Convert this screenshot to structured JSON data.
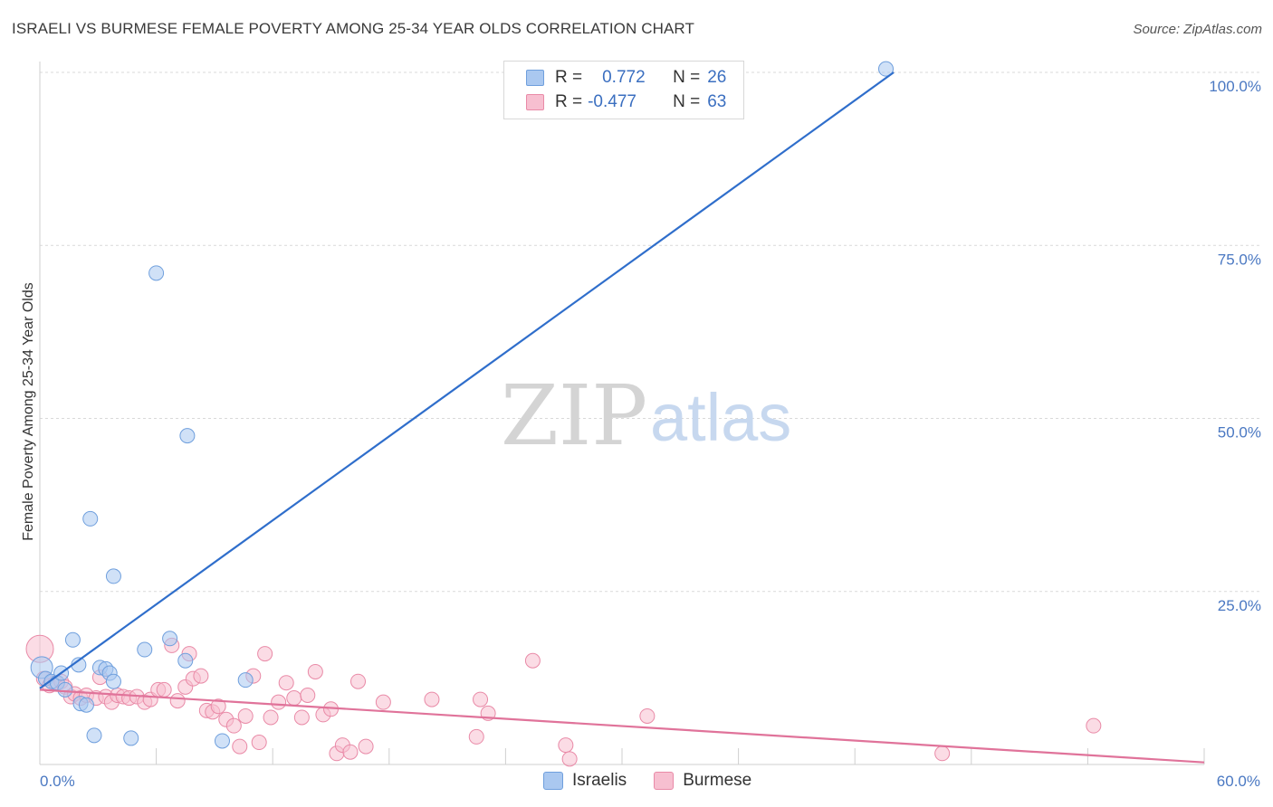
{
  "title": "ISRAELI VS BURMESE FEMALE POVERTY AMONG 25-34 YEAR OLDS CORRELATION CHART",
  "source": "Source: ZipAtlas.com",
  "watermark": {
    "zip": "ZIP",
    "atlas": "atlas"
  },
  "legend": {
    "rows": [
      {
        "r_label": "R =",
        "r_value": "0.772",
        "n_label": "N =",
        "n_value": "26",
        "color": "#aac8f0",
        "border": "#6f9fdd"
      },
      {
        "r_label": "R =",
        "r_value": "-0.477",
        "n_label": "N =",
        "n_value": "63",
        "color": "#f7bfd0",
        "border": "#e98aa7"
      }
    ]
  },
  "bottom_legend": [
    {
      "label": "Israelis",
      "color": "#aac8f0",
      "border": "#6f9fdd"
    },
    {
      "label": "Burmese",
      "color": "#f7bfd0",
      "border": "#e98aa7"
    }
  ],
  "chart_data": {
    "type": "scatter",
    "title": "ISRAELI VS BURMESE FEMALE POVERTY AMONG 25-34 YEAR OLDS CORRELATION CHART",
    "xlabel": "",
    "ylabel": "Female Poverty Among 25-34 Year Olds",
    "xlim": [
      0,
      60
    ],
    "ylim": [
      0,
      100
    ],
    "x_ticks": [
      {
        "value": 0,
        "label": "0.0%"
      },
      {
        "value": 60,
        "label": "60.0%"
      }
    ],
    "y_ticks": [
      {
        "value": 25,
        "label": "25.0%"
      },
      {
        "value": 50,
        "label": "50.0%"
      },
      {
        "value": 75,
        "label": "75.0%"
      },
      {
        "value": 100,
        "label": "100.0%"
      }
    ],
    "grid": true,
    "series": [
      {
        "name": "Israelis",
        "color": "#aac8f0",
        "stroke": "#6f9fdd",
        "line_color": "#2f6ecb",
        "points": [
          [
            0.1,
            14.0
          ],
          [
            0.3,
            12.4
          ],
          [
            0.6,
            12.0
          ],
          [
            0.9,
            11.8
          ],
          [
            1.1,
            13.2
          ],
          [
            1.3,
            10.8
          ],
          [
            1.7,
            18.0
          ],
          [
            2.0,
            14.4
          ],
          [
            2.1,
            8.8
          ],
          [
            2.4,
            8.6
          ],
          [
            2.6,
            35.5
          ],
          [
            2.8,
            4.2
          ],
          [
            3.1,
            14.0
          ],
          [
            3.4,
            13.8
          ],
          [
            3.6,
            13.2
          ],
          [
            3.8,
            27.2
          ],
          [
            3.8,
            12.0
          ],
          [
            4.7,
            3.8
          ],
          [
            5.4,
            16.6
          ],
          [
            6.0,
            71.0
          ],
          [
            6.7,
            18.2
          ],
          [
            7.5,
            15.0
          ],
          [
            7.6,
            47.5
          ],
          [
            9.4,
            3.4
          ],
          [
            10.6,
            12.2
          ],
          [
            43.6,
            100.5
          ]
        ],
        "trend": [
          [
            0,
            11.0
          ],
          [
            44.0,
            100.0
          ]
        ]
      },
      {
        "name": "Burmese",
        "color": "#f7bfd0",
        "stroke": "#e98aa7",
        "line_color": "#e0739a",
        "points": [
          [
            0.0,
            16.7
          ],
          [
            0.2,
            12.4
          ],
          [
            0.5,
            11.4
          ],
          [
            0.8,
            11.8
          ],
          [
            1.1,
            12.0
          ],
          [
            1.3,
            11.2
          ],
          [
            1.6,
            9.8
          ],
          [
            1.8,
            10.2
          ],
          [
            2.1,
            9.6
          ],
          [
            2.4,
            10.0
          ],
          [
            2.9,
            9.6
          ],
          [
            3.1,
            12.6
          ],
          [
            3.4,
            9.8
          ],
          [
            3.7,
            9.0
          ],
          [
            4.0,
            10.0
          ],
          [
            4.3,
            9.8
          ],
          [
            4.6,
            9.6
          ],
          [
            5.0,
            9.8
          ],
          [
            5.4,
            9.0
          ],
          [
            5.7,
            9.4
          ],
          [
            6.1,
            10.8
          ],
          [
            6.4,
            10.8
          ],
          [
            6.8,
            17.2
          ],
          [
            7.1,
            9.2
          ],
          [
            7.5,
            11.2
          ],
          [
            7.7,
            16.0
          ],
          [
            7.9,
            12.4
          ],
          [
            8.3,
            12.8
          ],
          [
            8.6,
            7.8
          ],
          [
            8.9,
            7.6
          ],
          [
            9.2,
            8.4
          ],
          [
            9.6,
            6.5
          ],
          [
            10.0,
            5.6
          ],
          [
            10.3,
            2.6
          ],
          [
            10.6,
            7.0
          ],
          [
            11.0,
            12.8
          ],
          [
            11.3,
            3.2
          ],
          [
            11.6,
            16.0
          ],
          [
            11.9,
            6.8
          ],
          [
            12.3,
            9.0
          ],
          [
            12.7,
            11.8
          ],
          [
            13.1,
            9.6
          ],
          [
            13.5,
            6.8
          ],
          [
            13.8,
            10.0
          ],
          [
            14.2,
            13.4
          ],
          [
            14.6,
            7.2
          ],
          [
            15.0,
            8.0
          ],
          [
            15.3,
            1.6
          ],
          [
            15.6,
            2.8
          ],
          [
            16.0,
            1.8
          ],
          [
            16.4,
            12.0
          ],
          [
            16.8,
            2.6
          ],
          [
            17.7,
            9.0
          ],
          [
            20.2,
            9.4
          ],
          [
            22.5,
            4.0
          ],
          [
            22.7,
            9.4
          ],
          [
            23.1,
            7.4
          ],
          [
            25.4,
            15.0
          ],
          [
            27.1,
            2.8
          ],
          [
            27.3,
            0.8
          ],
          [
            31.3,
            7.0
          ],
          [
            46.5,
            1.6
          ],
          [
            54.3,
            5.6
          ]
        ],
        "trend": [
          [
            0,
            10.8
          ],
          [
            60,
            0.3
          ]
        ]
      }
    ]
  }
}
